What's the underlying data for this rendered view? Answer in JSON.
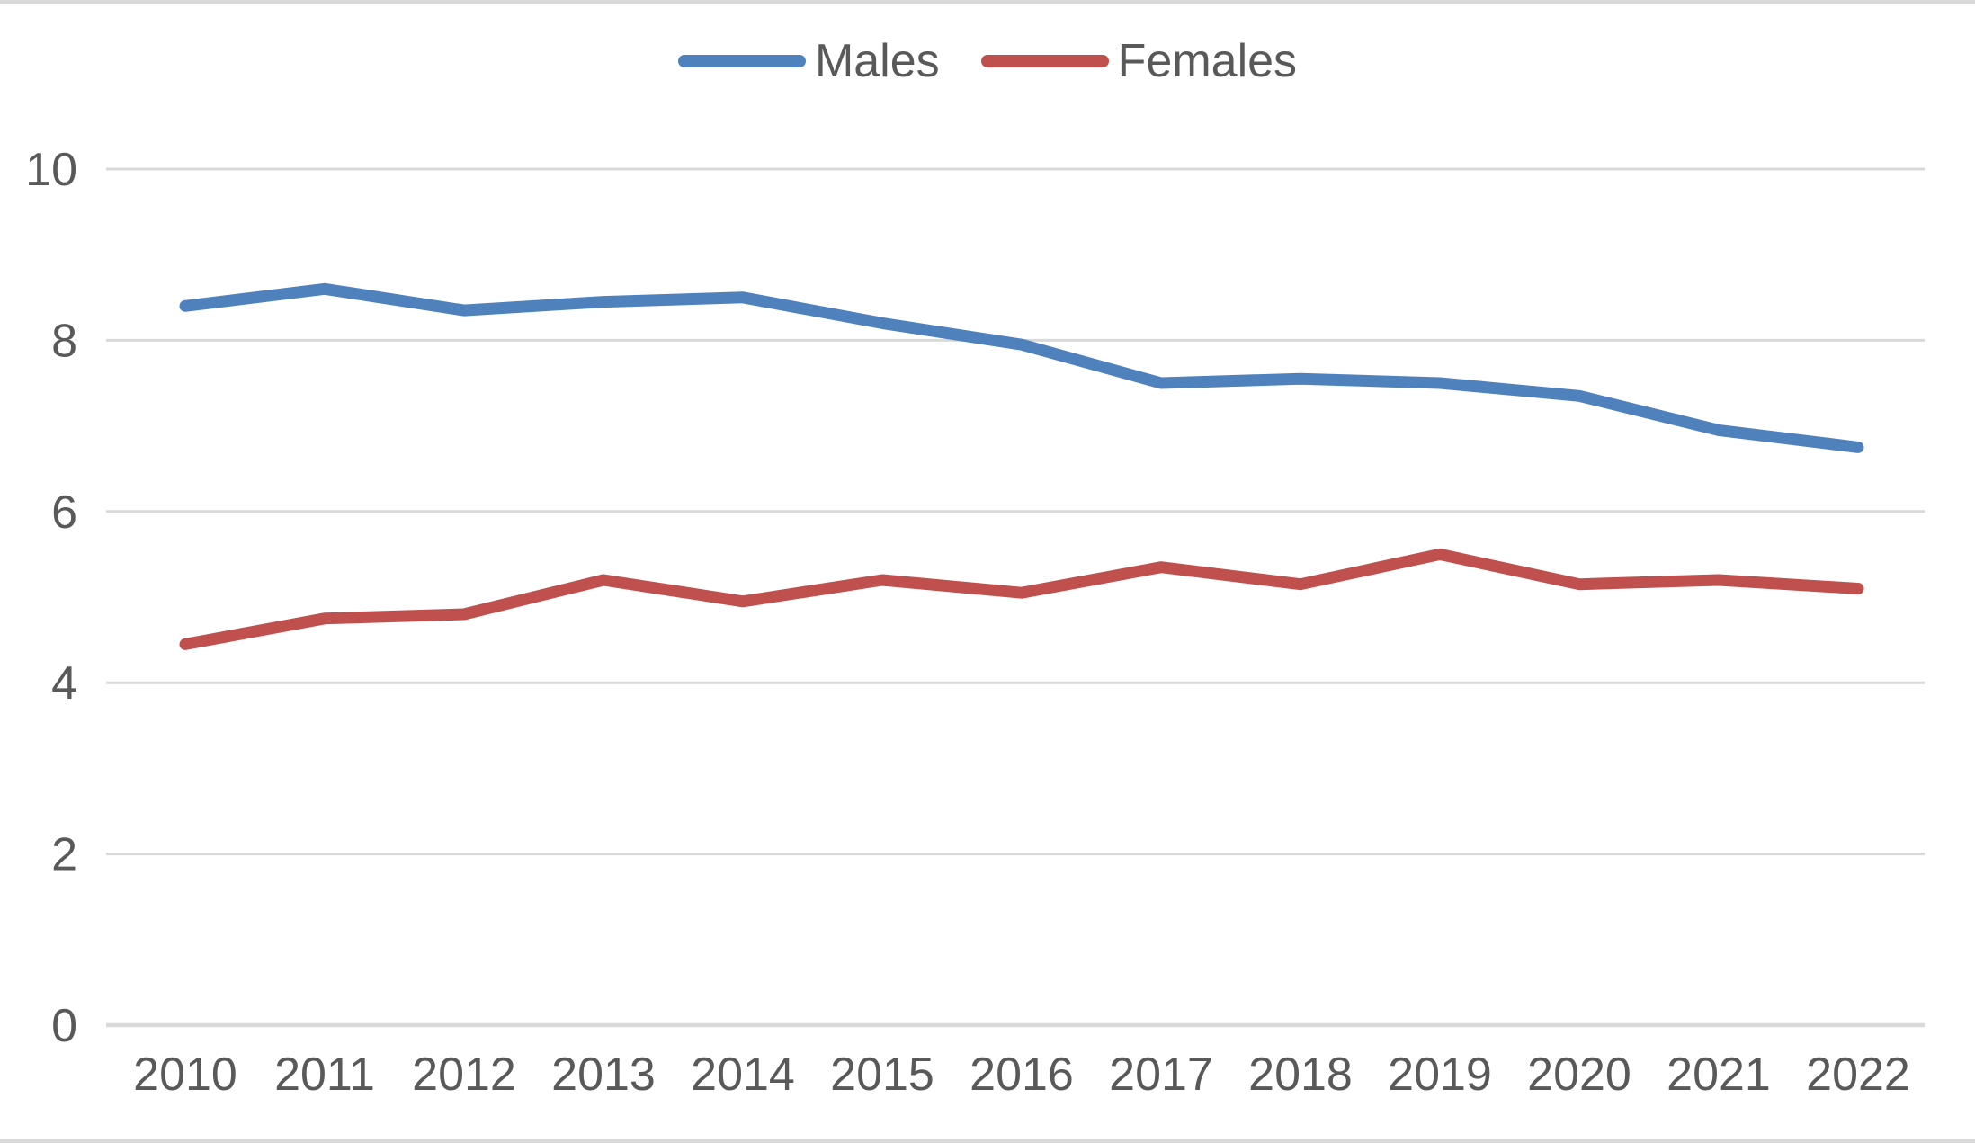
{
  "chart_data": {
    "type": "line",
    "title": "",
    "xlabel": "",
    "ylabel": "",
    "x": [
      2010,
      2011,
      2012,
      2013,
      2014,
      2015,
      2016,
      2017,
      2018,
      2019,
      2020,
      2021,
      2022
    ],
    "series": [
      {
        "name": "Males",
        "color": "#4f81bd",
        "values": [
          8.4,
          8.6,
          8.35,
          8.45,
          8.5,
          8.2,
          7.95,
          7.5,
          7.55,
          7.5,
          7.35,
          6.95,
          6.75
        ]
      },
      {
        "name": "Females",
        "color": "#c0504d",
        "values": [
          4.45,
          4.75,
          4.8,
          5.2,
          4.95,
          5.2,
          5.05,
          5.35,
          5.15,
          5.5,
          5.15,
          5.2,
          5.1
        ]
      }
    ],
    "ylim": [
      0,
      10
    ],
    "y_ticks": [
      0,
      2,
      4,
      6,
      8,
      10
    ],
    "grid": "horizontal-only",
    "legend_position": "top-center",
    "colors": {
      "grid_line": "#d9d9d9",
      "axis_line": "#d9d9d9",
      "tick_text": "#595959",
      "background": "#ffffff",
      "edge_bar": "#d9d9d9"
    }
  }
}
